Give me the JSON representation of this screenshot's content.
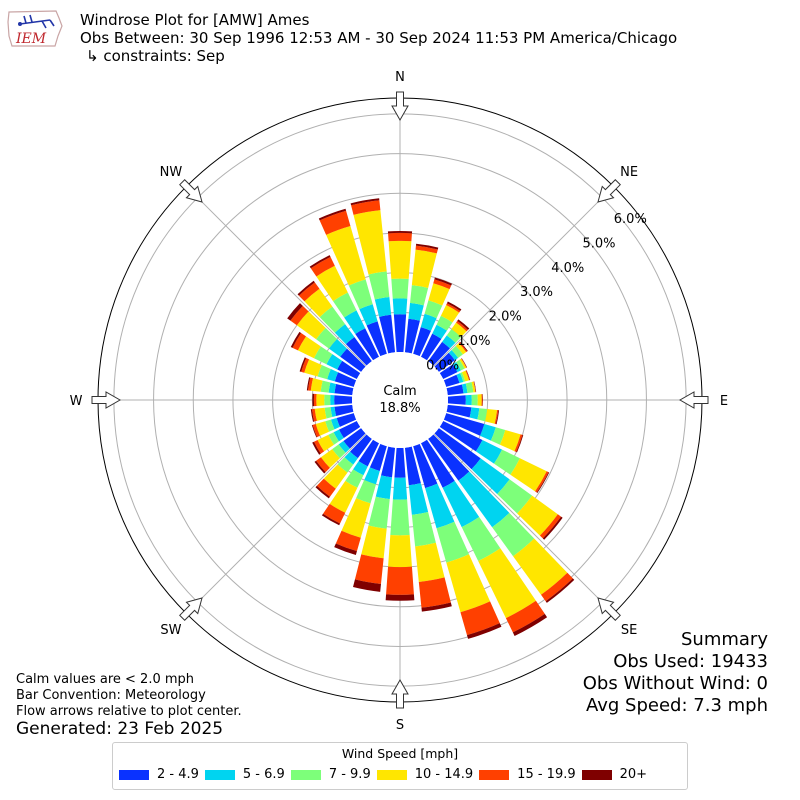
{
  "logo_text": "IEM",
  "title": {
    "line1": "Windrose Plot for [AMW] Ames",
    "line2": "Obs Between: 30 Sep 1996 12:53 AM - 30 Sep 2024 11:53 PM America/Chicago",
    "line3": "↳ constraints: Sep"
  },
  "summary": {
    "heading": "Summary",
    "obs_used": "Obs Used: 19433",
    "obs_without_wind": "Obs Without Wind: 0",
    "avg_speed": "Avg Speed: 7.3 mph"
  },
  "notes": {
    "calm_note": "Calm values are < 2.0 mph",
    "bar_convention": "Bar Convention: Meteorology",
    "flow_arrows": "Flow arrows relative to plot center.",
    "generated": "Generated: 23 Feb 2025"
  },
  "chart_data": {
    "type": "windrose",
    "calm_label": "Calm",
    "calm_value": "18.8%",
    "radial_ticks": [
      "0.0%",
      "1.0%",
      "2.0%",
      "3.0%",
      "4.0%",
      "5.0%",
      "6.0%"
    ],
    "radial_max": 6.4,
    "compass": [
      "N",
      "NE",
      "E",
      "SE",
      "S",
      "SW",
      "W",
      "NW"
    ],
    "legend_title": "Wind Speed [mph]",
    "bins": [
      {
        "label": "2 - 4.9",
        "color": "#0a32ff"
      },
      {
        "label": "5 - 6.9",
        "color": "#00d4f0"
      },
      {
        "label": "7 - 9.9",
        "color": "#7dff7a"
      },
      {
        "label": "10 - 14.9",
        "color": "#ffe600"
      },
      {
        "label": "15 - 19.9",
        "color": "#ff4000"
      },
      {
        "label": "20+",
        "color": "#7f0000"
      }
    ],
    "directions": [
      0,
      10,
      20,
      30,
      40,
      50,
      60,
      70,
      80,
      90,
      100,
      110,
      120,
      130,
      140,
      150,
      160,
      170,
      180,
      190,
      200,
      210,
      220,
      230,
      240,
      250,
      260,
      270,
      280,
      290,
      300,
      310,
      320,
      330,
      340,
      350
    ],
    "cumulative": [
      [
        0.95,
        1.35,
        1.85,
        2.8,
        3.0,
        3.05
      ],
      [
        0.85,
        1.25,
        1.7,
        2.6,
        2.7,
        2.75
      ],
      [
        0.7,
        1.05,
        1.4,
        1.85,
        1.95,
        2.0
      ],
      [
        0.65,
        0.9,
        1.15,
        1.45,
        1.5,
        1.55
      ],
      [
        0.6,
        0.8,
        1.0,
        1.2,
        1.25,
        1.3
      ],
      [
        0.5,
        0.6,
        0.75,
        0.85,
        0.88,
        0.9
      ],
      [
        0.4,
        0.5,
        0.6,
        0.65,
        0.66,
        0.67
      ],
      [
        0.35,
        0.45,
        0.5,
        0.6,
        0.62,
        0.63
      ],
      [
        0.4,
        0.5,
        0.65,
        0.7,
        0.71,
        0.72
      ],
      [
        0.45,
        0.6,
        0.75,
        0.85,
        0.87,
        0.88
      ],
      [
        0.6,
        0.8,
        1.0,
        1.25,
        1.28,
        1.3
      ],
      [
        1.0,
        1.3,
        1.55,
        1.95,
        2.0,
        2.02
      ],
      [
        1.1,
        1.65,
        2.15,
        2.9,
        2.95,
        2.97
      ],
      [
        1.3,
        2.2,
        2.9,
        3.7,
        3.8,
        3.85
      ],
      [
        1.3,
        2.75,
        3.65,
        4.85,
        5.05,
        5.1
      ],
      [
        1.25,
        2.35,
        3.3,
        4.9,
        5.3,
        5.4
      ],
      [
        1.1,
        2.15,
        3.05,
        4.35,
        4.95,
        5.05
      ],
      [
        0.95,
        1.7,
        2.5,
        3.4,
        4.05,
        4.15
      ],
      [
        0.75,
        1.3,
        2.2,
        3.0,
        3.7,
        3.85
      ],
      [
        0.75,
        1.3,
        2.05,
        2.8,
        3.45,
        3.65
      ],
      [
        0.65,
        1.0,
        1.5,
        2.4,
        2.75,
        2.85
      ],
      [
        0.65,
        0.9,
        1.25,
        1.95,
        2.25,
        2.3
      ],
      [
        0.6,
        0.8,
        1.05,
        1.55,
        1.8,
        1.85
      ],
      [
        0.55,
        0.7,
        0.9,
        1.25,
        1.4,
        1.45
      ],
      [
        0.5,
        0.65,
        0.8,
        1.1,
        1.2,
        1.25
      ],
      [
        0.45,
        0.6,
        0.75,
        1.0,
        1.08,
        1.1
      ],
      [
        0.45,
        0.55,
        0.7,
        0.95,
        1.02,
        1.05
      ],
      [
        0.45,
        0.55,
        0.7,
        0.9,
        0.96,
        1.0
      ],
      [
        0.45,
        0.6,
        0.8,
        1.05,
        1.12,
        1.15
      ],
      [
        0.5,
        0.7,
        0.95,
        1.3,
        1.38,
        1.42
      ],
      [
        0.55,
        0.85,
        1.2,
        1.65,
        1.8,
        1.85
      ],
      [
        0.65,
        1.0,
        1.4,
        2.0,
        2.2,
        2.3
      ],
      [
        0.75,
        1.15,
        1.7,
        2.25,
        2.45,
        2.5
      ],
      [
        0.8,
        1.3,
        1.8,
        2.55,
        2.8,
        2.85
      ],
      [
        0.85,
        1.3,
        1.95,
        3.35,
        3.75,
        3.8
      ],
      [
        0.95,
        1.4,
        2.05,
        3.6,
        3.85,
        3.9
      ]
    ]
  }
}
